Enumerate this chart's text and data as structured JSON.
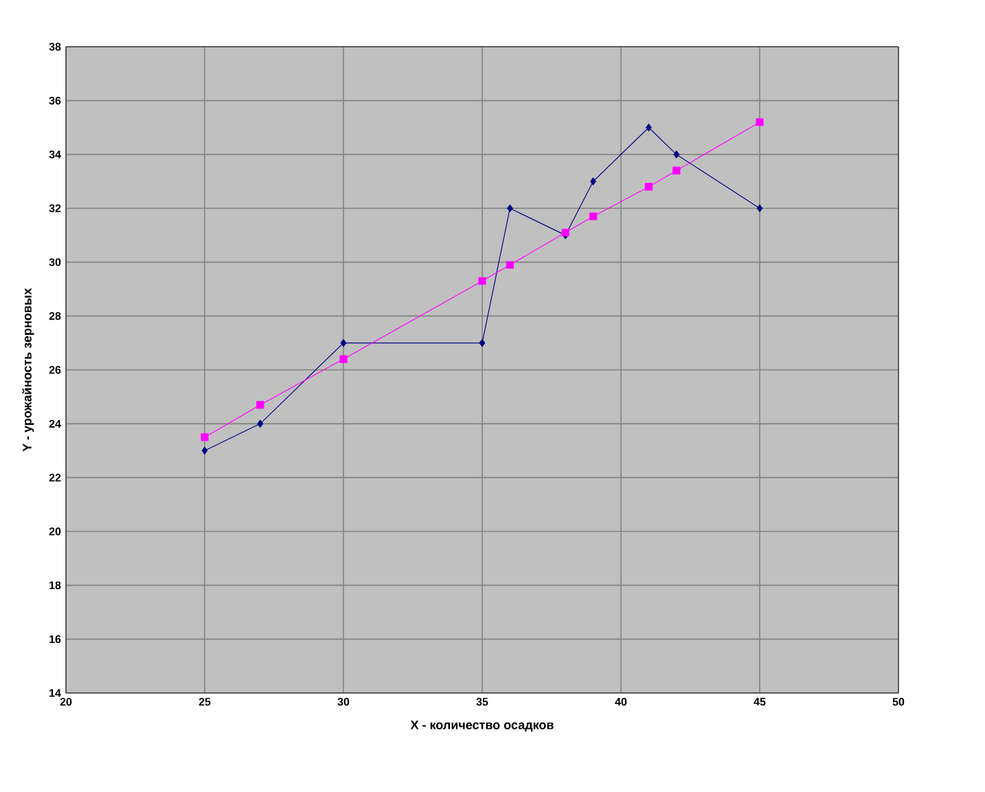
{
  "chart_data": {
    "type": "line",
    "xlabel": "X - количество осадков",
    "ylabel": "Y - урожайность зерновых",
    "x": [
      25,
      27,
      30,
      35,
      36,
      38,
      39,
      41,
      42,
      45
    ],
    "series": [
      {
        "color": "#000080",
        "marker": "diamond",
        "values": [
          23,
          24,
          27,
          27,
          32,
          31,
          33,
          35,
          34,
          32
        ]
      },
      {
        "color": "#ff00ff",
        "marker": "square",
        "values": [
          23.5,
          24.7,
          26.4,
          29.3,
          29.9,
          31.1,
          31.7,
          32.8,
          33.4,
          35.2
        ]
      }
    ],
    "xlim": [
      20,
      50
    ],
    "xticks": [
      20,
      25,
      30,
      35,
      40,
      45,
      50
    ],
    "ylim": [
      14,
      38
    ],
    "yticks": [
      14,
      16,
      18,
      20,
      22,
      24,
      26,
      28,
      30,
      32,
      34,
      36,
      38
    ],
    "grid": true,
    "line_style": "solid"
  }
}
